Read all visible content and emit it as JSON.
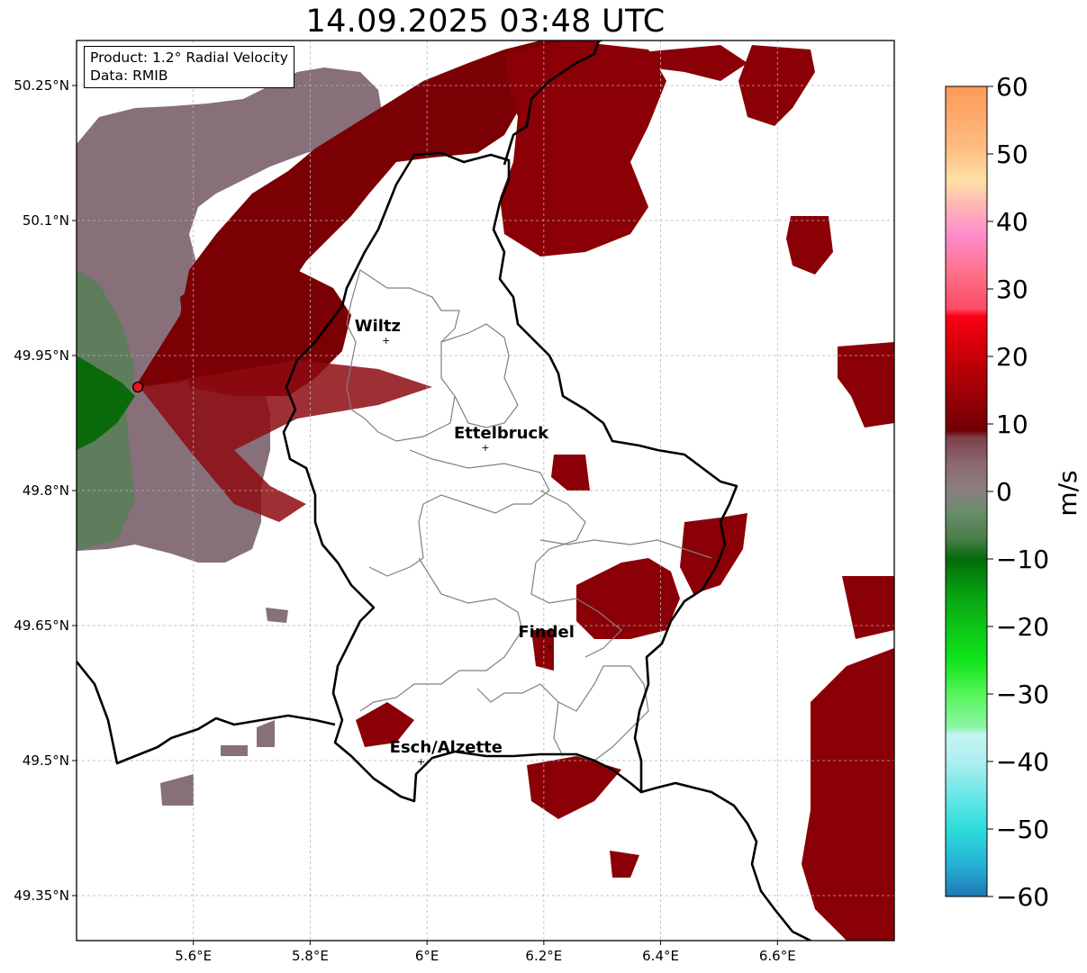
{
  "title": "14.09.2025 03:48 UTC",
  "info_box": {
    "product": "Product: 1.2° Radial Velocity",
    "data": "Data: RMIB"
  },
  "map": {
    "lon_range": [
      5.4,
      6.8
    ],
    "lat_range": [
      49.3,
      50.3
    ],
    "lon_ticks": [
      {
        "value": 5.6,
        "label": "5.6°E"
      },
      {
        "value": 5.8,
        "label": "5.8°E"
      },
      {
        "value": 6.0,
        "label": "6°E"
      },
      {
        "value": 6.2,
        "label": "6.2°E"
      },
      {
        "value": 6.4,
        "label": "6.4°E"
      },
      {
        "value": 6.6,
        "label": "6.6°E"
      }
    ],
    "lat_ticks": [
      {
        "value": 50.25,
        "label": "50.25°N"
      },
      {
        "value": 50.1,
        "label": "50.1°N"
      },
      {
        "value": 49.95,
        "label": "49.95°N"
      },
      {
        "value": 49.8,
        "label": "49.8°N"
      },
      {
        "value": 49.65,
        "label": "49.65°N"
      },
      {
        "value": 49.5,
        "label": "49.5°N"
      },
      {
        "value": 49.35,
        "label": "49.35°N"
      }
    ],
    "cities": [
      {
        "name": "Wiltz",
        "lon": 5.93,
        "lat": 49.967
      },
      {
        "name": "Ettelbruck",
        "lon": 6.1,
        "lat": 49.848
      },
      {
        "name": "Findel",
        "lon": 6.21,
        "lat": 49.627
      },
      {
        "name": "Esch/Alzette",
        "lon": 5.99,
        "lat": 49.499
      }
    ],
    "radar_site": {
      "lon": 5.505,
      "lat": 49.915,
      "color": "#e8141e"
    },
    "grid_color": "#b4b4b4",
    "border_color": "#000000",
    "canton_color": "#808080"
  },
  "colorbar": {
    "label": "m/s",
    "min": -60,
    "max": 60,
    "ticks": [
      {
        "value": 60,
        "label": "60"
      },
      {
        "value": 50,
        "label": "50"
      },
      {
        "value": 40,
        "label": "40"
      },
      {
        "value": 30,
        "label": "30"
      },
      {
        "value": 20,
        "label": "20"
      },
      {
        "value": 10,
        "label": "10"
      },
      {
        "value": 0,
        "label": "0"
      },
      {
        "value": -10,
        "label": "−10"
      },
      {
        "value": -20,
        "label": "−20"
      },
      {
        "value": -30,
        "label": "−30"
      },
      {
        "value": -40,
        "label": "−40"
      },
      {
        "value": -50,
        "label": "−50"
      },
      {
        "value": -60,
        "label": "−60"
      }
    ],
    "stops": [
      {
        "value": -60,
        "color": "#1f78b4"
      },
      {
        "value": -55,
        "color": "#25b4d6"
      },
      {
        "value": -50,
        "color": "#2ddcdc"
      },
      {
        "value": -45,
        "color": "#6ae6e6"
      },
      {
        "value": -40,
        "color": "#aeeef0"
      },
      {
        "value": -36,
        "color": "#c4f4f0"
      },
      {
        "value": -35,
        "color": "#8ef5a6"
      },
      {
        "value": -30,
        "color": "#55f55a"
      },
      {
        "value": -25,
        "color": "#10e41a"
      },
      {
        "value": -20,
        "color": "#0cc416"
      },
      {
        "value": -15,
        "color": "#07a012"
      },
      {
        "value": -10,
        "color": "#036a09"
      },
      {
        "value": -7,
        "color": "#4a7e4a"
      },
      {
        "value": -3,
        "color": "#6a8c6a"
      },
      {
        "value": 0,
        "color": "#8a8080"
      },
      {
        "value": 4,
        "color": "#8c6a72"
      },
      {
        "value": 8,
        "color": "#7c4048"
      },
      {
        "value": 9,
        "color": "#700004"
      },
      {
        "value": 15,
        "color": "#a00006"
      },
      {
        "value": 21,
        "color": "#d00008"
      },
      {
        "value": 26,
        "color": "#fa0014"
      },
      {
        "value": 27,
        "color": "#fe4a64"
      },
      {
        "value": 32,
        "color": "#fe6e86"
      },
      {
        "value": 38,
        "color": "#fe8ccc"
      },
      {
        "value": 42,
        "color": "#feb2b6"
      },
      {
        "value": 46,
        "color": "#fee0a6"
      },
      {
        "value": 51,
        "color": "#febc80"
      },
      {
        "value": 56,
        "color": "#fea86a"
      },
      {
        "value": 60,
        "color": "#fe9a56"
      }
    ]
  }
}
